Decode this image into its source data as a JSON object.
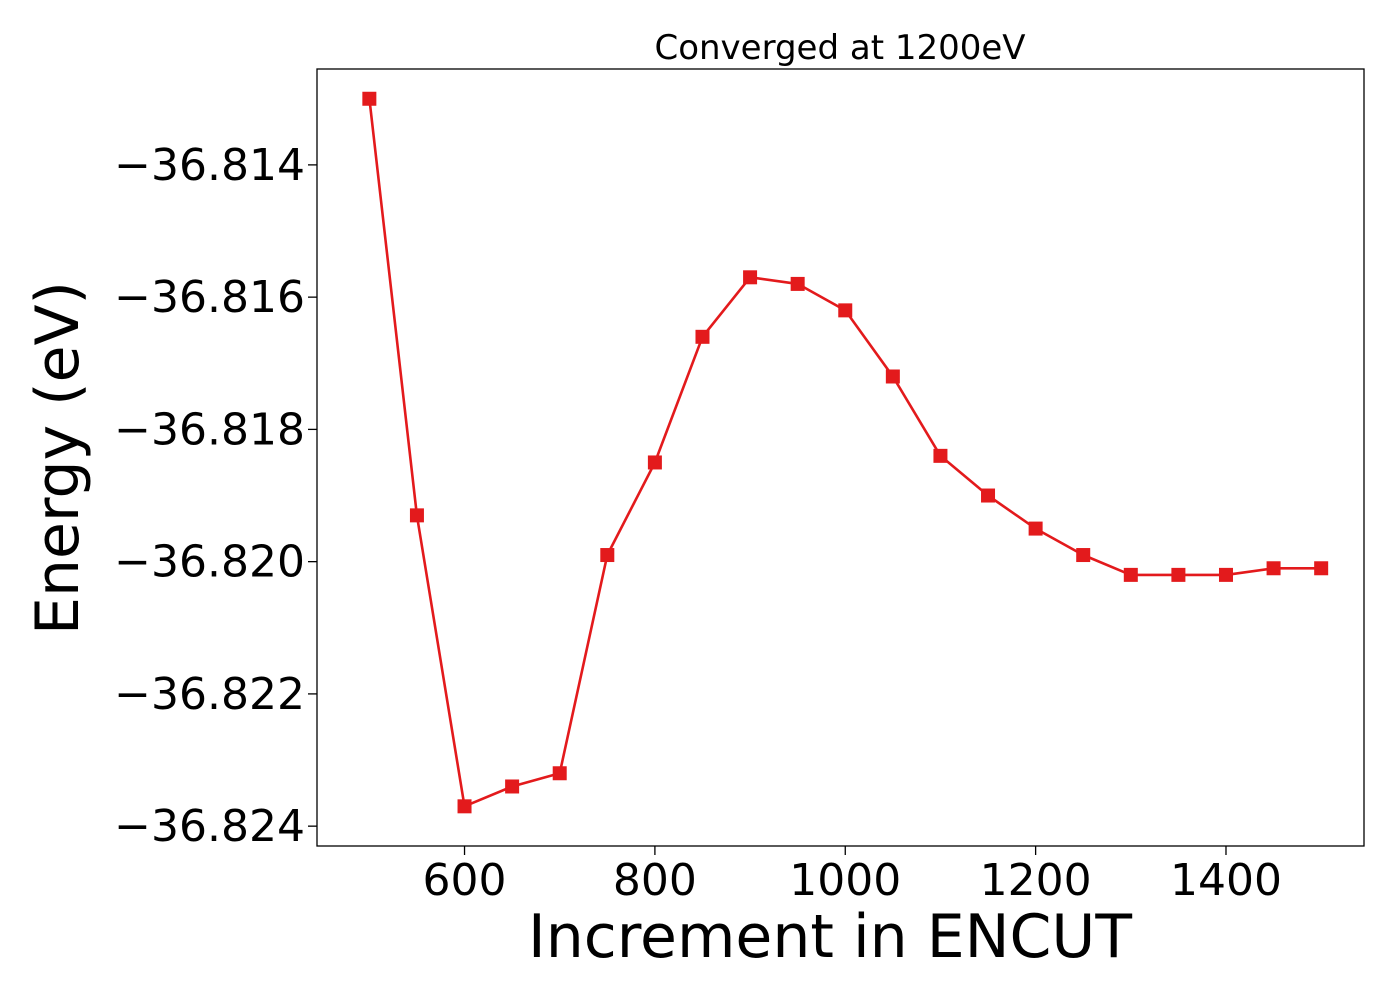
{
  "chart_data": {
    "type": "line",
    "title": "Converged at 1200eV",
    "xlabel": "Increment in ENCUT",
    "ylabel": "Energy (eV)",
    "xlim": [
      445,
      1545
    ],
    "ylim": [
      -36.8243,
      -36.81255
    ],
    "x_ticks": [
      600,
      800,
      1000,
      1200,
      1400
    ],
    "y_ticks": [
      -36.814,
      -36.816,
      -36.818,
      -36.82,
      -36.822,
      -36.824
    ],
    "x_tick_labels": [
      "600",
      "800",
      "1000",
      "1200",
      "1400"
    ],
    "y_tick_labels": [
      "−36.814",
      "−36.816",
      "−36.818",
      "−36.820",
      "−36.822",
      "−36.824"
    ],
    "grid": false,
    "series": [
      {
        "color": "#e31a1c",
        "marker": "square",
        "x": [
          500,
          550,
          600,
          650,
          700,
          750,
          800,
          850,
          900,
          950,
          1000,
          1050,
          1100,
          1150,
          1200,
          1250,
          1300,
          1350,
          1400,
          1450,
          1500
        ],
        "y": [
          -36.813,
          -36.8193,
          -36.8237,
          -36.8234,
          -36.8232,
          -36.8199,
          -36.8185,
          -36.8166,
          -36.8157,
          -36.8158,
          -36.8162,
          -36.8172,
          -36.8184,
          -36.819,
          -36.8195,
          -36.8199,
          -36.8202,
          -36.8202,
          -36.8202,
          -36.8201,
          -36.8201
        ]
      }
    ]
  }
}
